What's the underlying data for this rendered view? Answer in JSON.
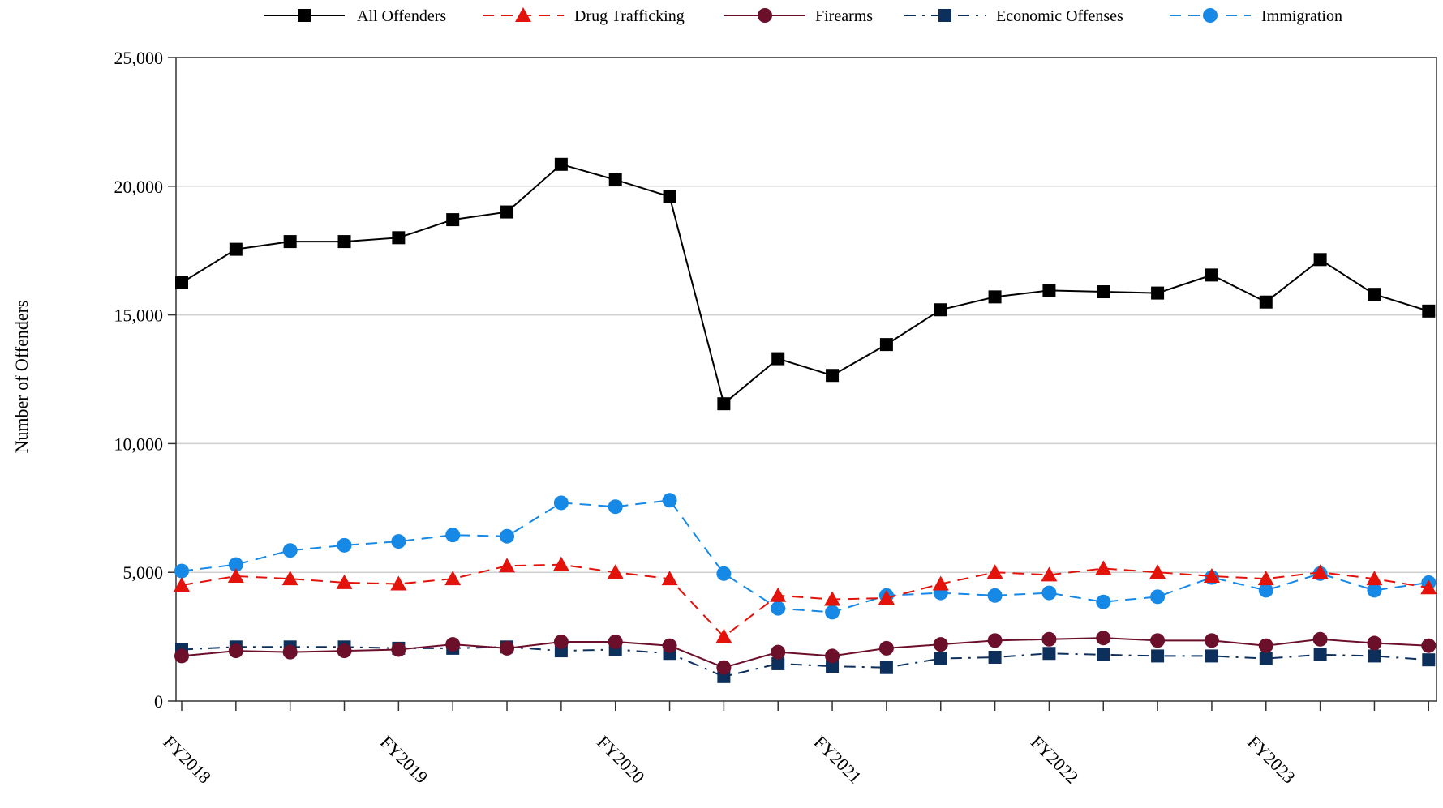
{
  "chart_data": {
    "type": "line",
    "title": "",
    "xlabel": "",
    "ylabel": "Number of Offenders",
    "ylim": [
      0,
      25000
    ],
    "yticks": [
      0,
      5000,
      10000,
      15000,
      20000,
      25000
    ],
    "ytick_labels": [
      "0",
      "5,000",
      "10,000",
      "15,000",
      "20,000",
      "25,000"
    ],
    "xtick_labels": [
      "FY2018",
      "FY2019",
      "FY2020",
      "FY2021",
      "FY2022",
      "FY2023"
    ],
    "xtick_quarters": [
      0,
      4,
      8,
      12,
      16,
      20
    ],
    "grid": true,
    "legend_position": "top",
    "x": [
      1,
      2,
      3,
      4,
      5,
      6,
      7,
      8,
      9,
      10,
      11,
      12,
      13,
      14,
      15,
      16,
      17,
      18,
      19,
      20,
      21,
      22,
      23,
      24
    ],
    "series": [
      {
        "name": "All Offenders",
        "color": "#000000",
        "marker": "square",
        "dash": "solid",
        "values": [
          16250,
          17550,
          17850,
          17850,
          18000,
          18700,
          19000,
          20850,
          20250,
          19600,
          11550,
          13300,
          12650,
          13850,
          15200,
          15700,
          15950,
          15900,
          15850,
          16550,
          15500,
          17150,
          15800,
          15150
        ]
      },
      {
        "name": "Drug Trafficking",
        "color": "#e3120b",
        "marker": "triangle",
        "dash": "dashed",
        "values": [
          4500,
          4850,
          4750,
          4600,
          4550,
          4750,
          5250,
          5300,
          5000,
          4750,
          2500,
          4100,
          3950,
          4000,
          4550,
          5000,
          4900,
          5150,
          5000,
          4850,
          4750,
          5000,
          4750,
          4400
        ]
      },
      {
        "name": "Firearms",
        "color": "#6b0f2a",
        "marker": "circle",
        "dash": "solid",
        "values": [
          1750,
          1950,
          1900,
          1950,
          2000,
          2200,
          2050,
          2300,
          2300,
          2150,
          1300,
          1900,
          1750,
          2050,
          2200,
          2350,
          2400,
          2450,
          2350,
          2350,
          2150,
          2400,
          2250,
          2150
        ]
      },
      {
        "name": "Economic Offenses",
        "color": "#0d2f5b",
        "marker": "square",
        "dash": "dashdot",
        "values": [
          2000,
          2100,
          2100,
          2100,
          2050,
          2050,
          2100,
          1950,
          2000,
          1850,
          950,
          1450,
          1350,
          1300,
          1650,
          1700,
          1850,
          1800,
          1750,
          1750,
          1650,
          1800,
          1750,
          1600
        ]
      },
      {
        "name": "Immigration",
        "color": "#1688e6",
        "marker": "circle",
        "dash": "dashed",
        "values": [
          5050,
          5300,
          5850,
          6050,
          6200,
          6450,
          6400,
          7700,
          7550,
          7800,
          4950,
          3600,
          3450,
          4100,
          4200,
          4100,
          4200,
          3850,
          4050,
          4800,
          4300,
          4950,
          4300,
          4600
        ]
      }
    ]
  }
}
